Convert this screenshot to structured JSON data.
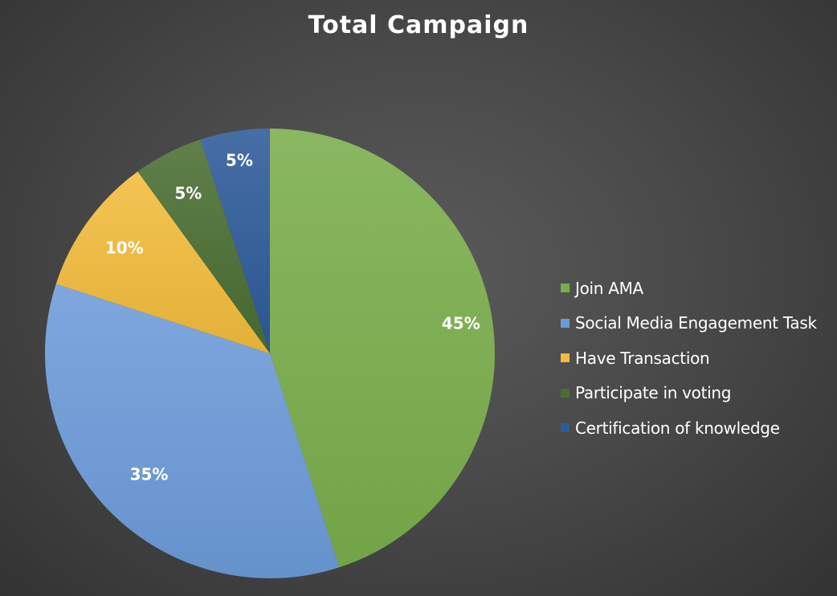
{
  "chart_data": {
    "type": "pie",
    "title": "Total Campaign",
    "categories": [
      "Join AMA",
      "Social Media Engagement Task",
      "Have Transaction",
      "Participate in voting",
      "Certification of knowledge"
    ],
    "values": [
      45,
      35,
      10,
      5,
      5
    ],
    "data_labels": [
      "45%",
      "35%",
      "10%",
      "5%",
      "5%"
    ],
    "colors": [
      "#7aad4c",
      "#6d9bd9",
      "#f2bc3c",
      "#4a6e32",
      "#2e5a99"
    ],
    "start_angle_deg": 0,
    "direction": "clockwise",
    "legend_position": "right"
  }
}
